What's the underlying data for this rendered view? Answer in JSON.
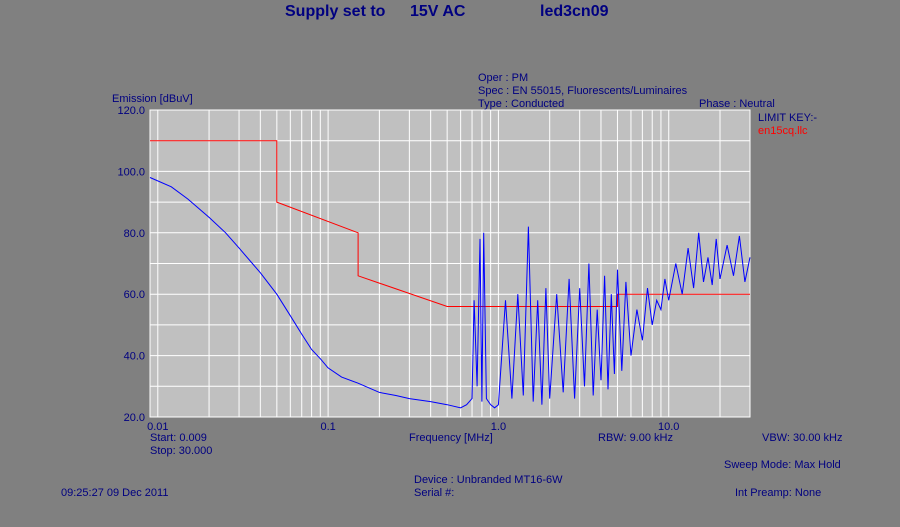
{
  "header": {
    "supply_label": "Supply set to",
    "supply_value": "15V AC",
    "file_name": "led3cn09"
  },
  "info": {
    "oper": "Oper : PM",
    "spec": "Spec : EN 55015, Fluorescents/Luminaires",
    "type": "Type : Conducted",
    "phase": "Phase : Neutral",
    "limit_key_label": "LIMIT KEY:-",
    "limit_key_file": "en15cq.llc"
  },
  "footer": {
    "start": "Start: 0.009",
    "stop": "Stop: 30.000",
    "rbw": "RBW: 9.00 kHz",
    "vbw": "VBW: 30.00 kHz",
    "sweep_mode": "Sweep Mode: Max Hold",
    "device": "Device : Unbranded MT16-6W",
    "serial": "Serial #:",
    "timestamp": "09:25:27 09 Dec 2011",
    "int_preamp": "Int Preamp: None"
  },
  "colors": {
    "background": "#808080",
    "plot_bg": "#c0c0c0",
    "text": "#000080",
    "limit": "#ff0000",
    "trace": "#0000ff",
    "grid": "#ffffff"
  },
  "chart_data": {
    "type": "line",
    "xlabel": "Frequency [MHz]",
    "ylabel": "Emission [dBuV]",
    "x_scale": "log",
    "xlim": [
      0.009,
      30.0
    ],
    "ylim": [
      20,
      120
    ],
    "x_tick_labels": [
      {
        "value": 0.01,
        "label": "0.01"
      },
      {
        "value": 0.1,
        "label": "0.1"
      },
      {
        "value": 1.0,
        "label": "1.0"
      },
      {
        "value": 10.0,
        "label": "10.0"
      }
    ],
    "y_tick_labels": [
      {
        "value": 20,
        "label": "20.0"
      },
      {
        "value": 40,
        "label": "40.0"
      },
      {
        "value": 60,
        "label": "60.0"
      },
      {
        "value": 80,
        "label": "80.0"
      },
      {
        "value": 100,
        "label": "100.0"
      },
      {
        "value": 120,
        "label": "120.0"
      }
    ],
    "grid": true,
    "limit_line": {
      "x": [
        0.009,
        0.05,
        0.05,
        0.15,
        0.15,
        0.5,
        5.0,
        5.0,
        30.0
      ],
      "y": [
        110,
        110,
        90,
        80,
        66,
        56,
        56,
        60,
        60
      ]
    },
    "emission": {
      "x": [
        0.009,
        0.012,
        0.015,
        0.02,
        0.025,
        0.03,
        0.04,
        0.05,
        0.06,
        0.07,
        0.08,
        0.09,
        0.1,
        0.12,
        0.15,
        0.2,
        0.25,
        0.3,
        0.4,
        0.5,
        0.6,
        0.65,
        0.7,
        0.72,
        0.75,
        0.78,
        0.8,
        0.82,
        0.85,
        0.9,
        0.95,
        1.0,
        1.1,
        1.2,
        1.3,
        1.4,
        1.5,
        1.6,
        1.7,
        1.8,
        1.9,
        2.0,
        2.2,
        2.4,
        2.6,
        2.8,
        3.0,
        3.2,
        3.4,
        3.6,
        3.8,
        4.0,
        4.2,
        4.4,
        4.6,
        4.8,
        5.0,
        5.3,
        5.6,
        6.0,
        6.5,
        7.0,
        7.5,
        8.0,
        8.5,
        9.0,
        9.5,
        10.0,
        11.0,
        12.0,
        13.0,
        14.0,
        15.0,
        16.0,
        17.0,
        18.0,
        19.0,
        20.0,
        22.0,
        24.0,
        26.0,
        28.0,
        30.0
      ],
      "y": [
        98,
        95,
        91,
        85,
        80,
        75,
        67,
        60,
        53,
        47,
        42,
        39,
        36,
        33,
        31,
        28,
        27,
        26,
        25,
        24,
        23,
        24,
        26,
        58,
        30,
        78,
        25,
        80,
        26,
        24,
        23,
        24,
        58,
        26,
        60,
        27,
        82,
        25,
        58,
        24,
        62,
        26,
        60,
        28,
        65,
        26,
        62,
        30,
        70,
        27,
        55,
        32,
        66,
        29,
        60,
        34,
        68,
        35,
        64,
        40,
        55,
        45,
        62,
        50,
        58,
        55,
        65,
        58,
        70,
        60,
        75,
        62,
        80,
        64,
        72,
        63,
        78,
        65,
        76,
        66,
        79,
        64,
        72
      ]
    }
  }
}
